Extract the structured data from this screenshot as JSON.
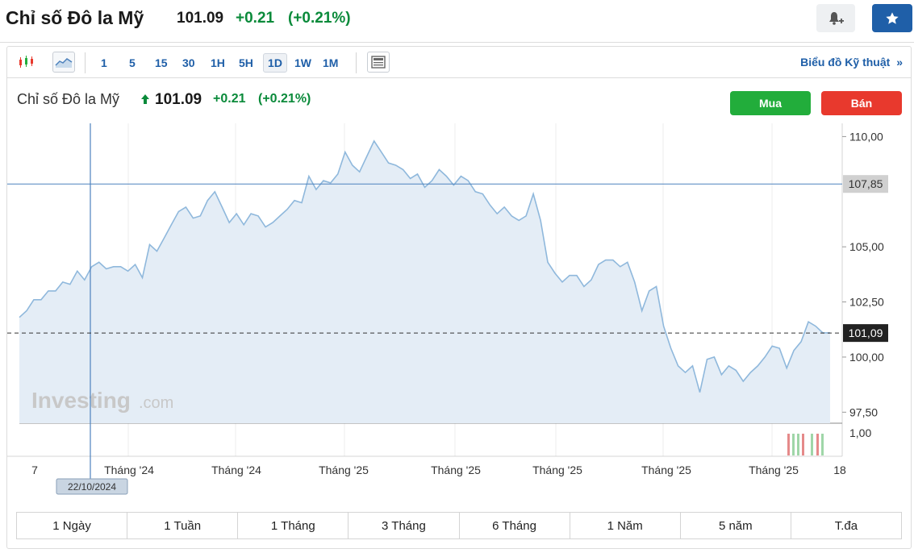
{
  "header": {
    "title": "Chỉ số Đô la Mỹ",
    "price": "101.09",
    "change": "+0.21",
    "change_pct": "(+0.21%)"
  },
  "toolbar": {
    "timeframes": [
      "1",
      "5",
      "15",
      "30",
      "1H",
      "5H",
      "1D",
      "1W",
      "1M"
    ],
    "active_timeframe": "1D",
    "tech_chart_link": "Biểu đồ Kỹ thuật"
  },
  "chart_header": {
    "title": "Chỉ số Đô la Mỹ",
    "price": "101.09",
    "change": "+0.21",
    "change_pct": "(+0.21%)",
    "buy_label": "Mua",
    "sell_label": "Bán"
  },
  "colors": {
    "up": "#0a8a3a",
    "accent": "#1f5fa8",
    "buy": "#22ad3b",
    "sell": "#e8392d",
    "line": "#8fb8dc",
    "area": "#e4edf6"
  },
  "chart_data": {
    "type": "area",
    "y_ticks": [
      "110,00",
      "105,00",
      "102,50",
      "100,00",
      "97,50"
    ],
    "y_range": [
      97,
      110.6
    ],
    "volume_tick": "1,00",
    "x_labels": [
      "7",
      "Tháng '24",
      "Tháng '24",
      "Tháng '25",
      "Tháng '25",
      "Tháng '25",
      "Tháng '25",
      "Tháng '25",
      "18"
    ],
    "crosshair_date": "22/10/2024",
    "crosshair_value": "107,85",
    "current_value_label": "101,09",
    "current_value": 101.09,
    "crosshair_y_value": 107.85,
    "values": [
      101.8,
      102.1,
      102.6,
      102.6,
      103.0,
      103.0,
      103.4,
      103.3,
      103.9,
      103.5,
      104.1,
      104.3,
      104.0,
      104.1,
      104.1,
      103.9,
      104.2,
      103.6,
      105.1,
      104.8,
      105.4,
      106.0,
      106.6,
      106.8,
      106.3,
      106.4,
      107.1,
      107.5,
      106.8,
      106.1,
      106.5,
      106.0,
      106.5,
      106.4,
      105.9,
      106.1,
      106.4,
      106.7,
      107.1,
      107.0,
      108.2,
      107.6,
      108.0,
      107.9,
      108.3,
      109.3,
      108.7,
      108.4,
      109.1,
      109.8,
      109.3,
      108.8,
      108.7,
      108.5,
      108.1,
      108.3,
      107.7,
      108.0,
      108.5,
      108.2,
      107.8,
      108.2,
      108.0,
      107.5,
      107.4,
      106.9,
      106.5,
      106.8,
      106.4,
      106.2,
      106.4,
      107.4,
      106.2,
      104.3,
      103.8,
      103.4,
      103.7,
      103.7,
      103.2,
      103.5,
      104.2,
      104.4,
      104.4,
      104.1,
      104.3,
      103.4,
      102.1,
      103.0,
      103.2,
      101.4,
      100.4,
      99.6,
      99.3,
      99.6,
      98.4,
      99.9,
      100.0,
      99.2,
      99.6,
      99.4,
      98.9,
      99.3,
      99.6,
      100.0,
      100.5,
      100.4,
      99.5,
      100.3,
      100.7,
      101.6,
      101.4,
      101.1,
      101.1
    ]
  },
  "ranges": [
    "1 Ngày",
    "1 Tuần",
    "1 Tháng",
    "3 Tháng",
    "6 Tháng",
    "1 Năm",
    "5 năm",
    "T.đa"
  ]
}
